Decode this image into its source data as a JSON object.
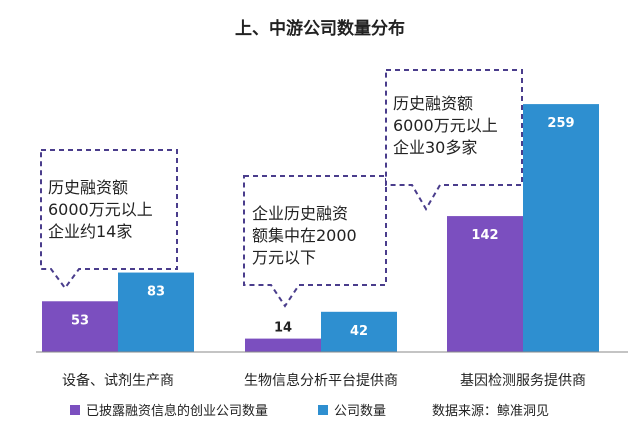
{
  "chart_data": {
    "type": "bar",
    "title": "上、中游公司数量分布",
    "categories": [
      "设备、试剂生产商",
      "生物信息分析平台提供商",
      "基因检测服务提供商"
    ],
    "series": [
      {
        "name": "已披露融资信息的创业公司数量",
        "color": "#7b4fbf",
        "values": [
          53,
          14,
          142
        ]
      },
      {
        "name": "公司数量",
        "color": "#2e8fd0",
        "values": [
          83,
          42,
          259
        ]
      }
    ],
    "ylim": [
      0,
      280
    ],
    "xlabel": "",
    "ylabel": "",
    "grid": false,
    "legend": "bottom-left",
    "annotations": [
      {
        "category": "设备、试剂生产商",
        "lines": [
          "历史融资额",
          "6000万元以上",
          "企业约14家"
        ]
      },
      {
        "category": "生物信息分析平台提供商",
        "lines": [
          "企业历史融资",
          "额集中在2000",
          "万元以下"
        ]
      },
      {
        "category": "基因检测服务提供商",
        "lines": [
          "历史融资额",
          "6000万元以上",
          "企业30多家"
        ]
      }
    ],
    "source": "数据来源：鲸准洞见"
  }
}
